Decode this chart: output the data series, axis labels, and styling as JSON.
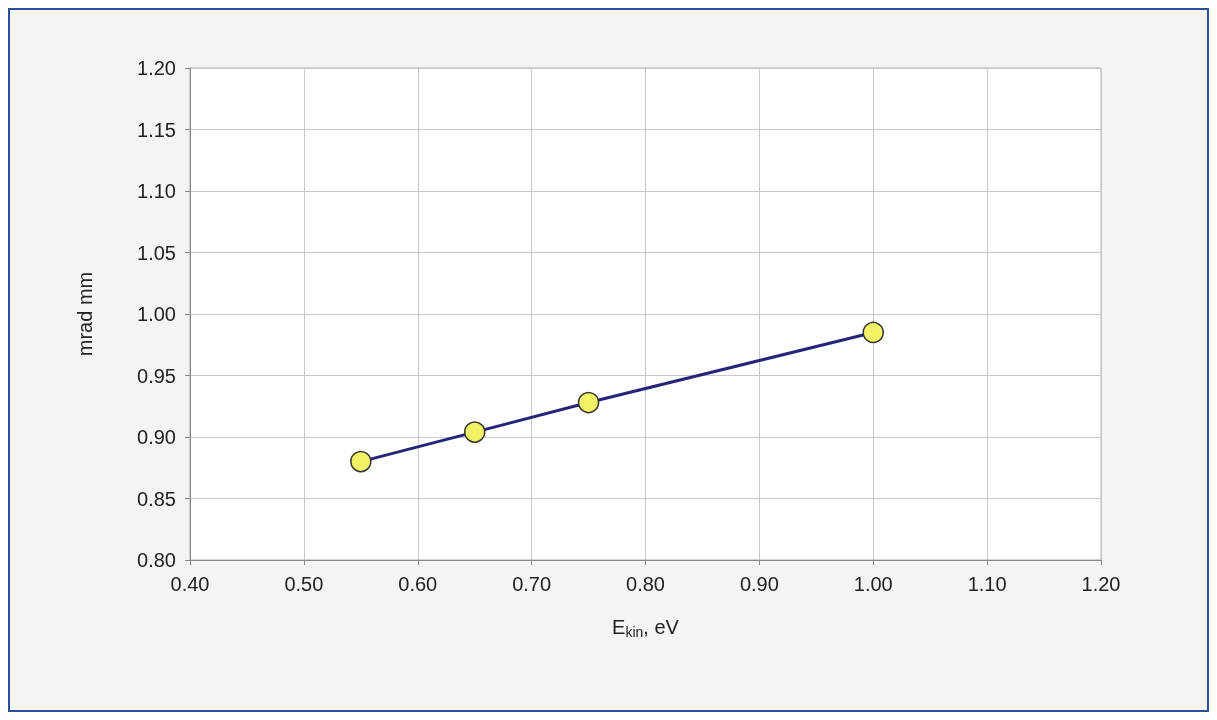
{
  "chart_data": {
    "type": "line",
    "xlabel": "E$_{kin}$, eV",
    "ylabel": "mrad mm",
    "x": [
      0.55,
      0.65,
      0.75,
      1.0
    ],
    "series": [
      {
        "color": "#24247a",
        "values": [
          0.88,
          0.904,
          0.928,
          0.985
        ]
      }
    ],
    "xlim": [
      0.4,
      1.2
    ],
    "xticks": [
      {
        "value": 0.4,
        "label": "0.40"
      },
      {
        "value": 0.5,
        "label": "0.50"
      },
      {
        "value": 0.6,
        "label": "0.60"
      },
      {
        "value": 0.7,
        "label": "0.70"
      },
      {
        "value": 0.8,
        "label": "0.80"
      },
      {
        "value": 0.9,
        "label": "0.90"
      },
      {
        "value": 1.0,
        "label": "1.00"
      },
      {
        "value": 1.1,
        "label": "1.10"
      },
      {
        "value": 1.2,
        "label": "1.20"
      }
    ],
    "ylim": [
      0.8,
      1.2
    ],
    "yticks": [
      {
        "value": 0.8,
        "label": "0.80"
      },
      {
        "value": 0.85,
        "label": "0.85"
      },
      {
        "value": 0.9,
        "label": "0.90"
      },
      {
        "value": 0.95,
        "label": "0.95"
      },
      {
        "value": 1.0,
        "label": "1.00"
      },
      {
        "value": 1.05,
        "label": "1.05"
      },
      {
        "value": 1.1,
        "label": "1.10"
      },
      {
        "value": 1.15,
        "label": "1.15"
      },
      {
        "value": 1.2,
        "label": "1.20"
      }
    ],
    "grid": true,
    "marker": "circle",
    "line_style": "solid"
  }
}
